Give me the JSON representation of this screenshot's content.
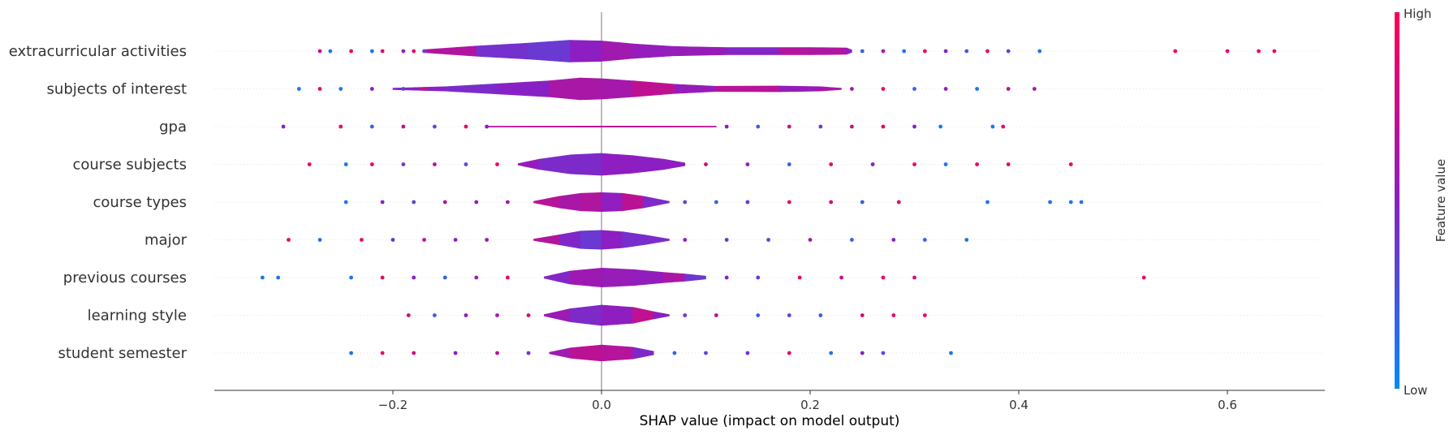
{
  "chart_data": {
    "type": "violin-beeswarm",
    "xlabel": "SHAP value (impact on model output)",
    "xlim": [
      -0.37,
      0.69
    ],
    "xticks": [
      -0.2,
      0.0,
      0.2,
      0.4,
      0.6
    ],
    "xtick_labels": [
      "−0.2",
      "0.0",
      "0.2",
      "0.4",
      "0.6"
    ],
    "grid": false,
    "zero_line": true,
    "colorbar": {
      "label": "Feature value",
      "high_label": "High",
      "low_label": "Low",
      "high_color": "#ff0052",
      "mid_color": "#8b1fc4",
      "low_color": "#008bfb"
    },
    "features": [
      {
        "name": "extracurricular activities",
        "violin": [
          [
            -0.17,
            0.1
          ],
          [
            -0.12,
            0.35
          ],
          [
            -0.07,
            0.55
          ],
          [
            -0.03,
            0.75
          ],
          [
            0.0,
            0.7
          ],
          [
            0.03,
            0.5
          ],
          [
            0.07,
            0.32
          ],
          [
            0.12,
            0.25
          ],
          [
            0.17,
            0.25
          ],
          [
            0.2,
            0.25
          ],
          [
            0.235,
            0.22
          ],
          [
            0.24,
            0.08
          ]
        ],
        "points": [
          [
            -0.27,
            0.8
          ],
          [
            -0.26,
            0.1
          ],
          [
            -0.24,
            0.9
          ],
          [
            -0.22,
            0.1
          ],
          [
            -0.21,
            0.85
          ],
          [
            -0.19,
            0.5
          ],
          [
            -0.18,
            0.9
          ],
          [
            -0.17,
            0.3
          ],
          [
            0.25,
            0.2
          ],
          [
            0.27,
            0.6
          ],
          [
            0.29,
            0.1
          ],
          [
            0.31,
            0.9
          ],
          [
            0.33,
            0.5
          ],
          [
            0.35,
            0.2
          ],
          [
            0.37,
            0.9
          ],
          [
            0.39,
            0.3
          ],
          [
            0.42,
            0.1
          ],
          [
            0.55,
            0.95
          ],
          [
            0.6,
            0.9
          ],
          [
            0.63,
            0.95
          ],
          [
            0.645,
            0.9
          ]
        ]
      },
      {
        "name": "subjects of interest",
        "violin": [
          [
            -0.2,
            0.05
          ],
          [
            -0.15,
            0.15
          ],
          [
            -0.1,
            0.35
          ],
          [
            -0.05,
            0.55
          ],
          [
            -0.02,
            0.75
          ],
          [
            0.0,
            0.7
          ],
          [
            0.03,
            0.55
          ],
          [
            0.07,
            0.32
          ],
          [
            0.11,
            0.18
          ],
          [
            0.17,
            0.2
          ],
          [
            0.21,
            0.15
          ],
          [
            0.23,
            0.05
          ]
        ],
        "points": [
          [
            -0.29,
            0.1
          ],
          [
            -0.27,
            0.9
          ],
          [
            -0.25,
            0.1
          ],
          [
            -0.22,
            0.5
          ],
          [
            -0.19,
            0.3
          ],
          [
            -0.17,
            0.9
          ],
          [
            0.24,
            0.6
          ],
          [
            0.27,
            0.9
          ],
          [
            0.3,
            0.2
          ],
          [
            0.33,
            0.5
          ],
          [
            0.36,
            0.1
          ],
          [
            0.39,
            0.7
          ],
          [
            0.415,
            0.6
          ]
        ]
      },
      {
        "name": "gpa",
        "violin": [
          [
            -0.11,
            0.03
          ],
          [
            0.0,
            0.04
          ],
          [
            0.11,
            0.03
          ]
        ],
        "points": [
          [
            -0.305,
            0.5
          ],
          [
            -0.25,
            0.9
          ],
          [
            -0.22,
            0.2
          ],
          [
            -0.19,
            0.7
          ],
          [
            -0.16,
            0.3
          ],
          [
            -0.13,
            0.9
          ],
          [
            -0.11,
            0.5
          ],
          [
            0.12,
            0.5
          ],
          [
            0.15,
            0.2
          ],
          [
            0.18,
            0.8
          ],
          [
            0.21,
            0.4
          ],
          [
            0.24,
            0.7
          ],
          [
            0.27,
            0.9
          ],
          [
            0.3,
            0.5
          ],
          [
            0.325,
            0.1
          ],
          [
            0.375,
            0.1
          ],
          [
            0.385,
            0.9
          ]
        ]
      },
      {
        "name": "course subjects",
        "violin": [
          [
            -0.08,
            0.05
          ],
          [
            -0.06,
            0.35
          ],
          [
            -0.03,
            0.65
          ],
          [
            0.0,
            0.75
          ],
          [
            0.03,
            0.6
          ],
          [
            0.06,
            0.35
          ],
          [
            0.08,
            0.1
          ]
        ],
        "points": [
          [
            -0.28,
            0.9
          ],
          [
            -0.245,
            0.1
          ],
          [
            -0.22,
            0.9
          ],
          [
            -0.19,
            0.4
          ],
          [
            -0.16,
            0.7
          ],
          [
            -0.13,
            0.3
          ],
          [
            -0.1,
            0.9
          ],
          [
            0.1,
            0.8
          ],
          [
            0.14,
            0.5
          ],
          [
            0.18,
            0.2
          ],
          [
            0.22,
            0.9
          ],
          [
            0.26,
            0.5
          ],
          [
            0.3,
            0.9
          ],
          [
            0.33,
            0.1
          ],
          [
            0.36,
            0.9
          ],
          [
            0.39,
            0.9
          ],
          [
            0.45,
            0.9
          ]
        ]
      },
      {
        "name": "course types",
        "violin": [
          [
            -0.065,
            0.05
          ],
          [
            -0.04,
            0.4
          ],
          [
            -0.02,
            0.6
          ],
          [
            0.0,
            0.65
          ],
          [
            0.02,
            0.6
          ],
          [
            0.04,
            0.4
          ],
          [
            0.065,
            0.05
          ]
        ],
        "points": [
          [
            -0.245,
            0.1
          ],
          [
            -0.21,
            0.5
          ],
          [
            -0.18,
            0.3
          ],
          [
            -0.15,
            0.7
          ],
          [
            -0.12,
            0.5
          ],
          [
            -0.09,
            0.6
          ],
          [
            0.08,
            0.3
          ],
          [
            0.11,
            0.2
          ],
          [
            0.14,
            0.4
          ],
          [
            0.18,
            0.9
          ],
          [
            0.22,
            0.8
          ],
          [
            0.25,
            0.2
          ],
          [
            0.285,
            0.9
          ],
          [
            0.37,
            0.1
          ],
          [
            0.43,
            0.1
          ],
          [
            0.45,
            0.1
          ],
          [
            0.46,
            0.1
          ]
        ]
      },
      {
        "name": "major",
        "violin": [
          [
            -0.065,
            0.05
          ],
          [
            -0.04,
            0.35
          ],
          [
            -0.02,
            0.6
          ],
          [
            0.0,
            0.65
          ],
          [
            0.02,
            0.55
          ],
          [
            0.04,
            0.35
          ],
          [
            0.065,
            0.05
          ]
        ],
        "points": [
          [
            -0.3,
            0.9
          ],
          [
            -0.27,
            0.1
          ],
          [
            -0.23,
            0.9
          ],
          [
            -0.2,
            0.4
          ],
          [
            -0.17,
            0.7
          ],
          [
            -0.14,
            0.5
          ],
          [
            -0.11,
            0.6
          ],
          [
            0.08,
            0.5
          ],
          [
            0.12,
            0.4
          ],
          [
            0.16,
            0.3
          ],
          [
            0.2,
            0.6
          ],
          [
            0.24,
            0.2
          ],
          [
            0.28,
            0.5
          ],
          [
            0.31,
            0.2
          ],
          [
            0.35,
            0.1
          ]
        ]
      },
      {
        "name": "previous courses",
        "violin": [
          [
            -0.055,
            0.05
          ],
          [
            -0.03,
            0.45
          ],
          [
            0.0,
            0.65
          ],
          [
            0.03,
            0.55
          ],
          [
            0.06,
            0.35
          ],
          [
            0.08,
            0.25
          ],
          [
            0.1,
            0.1
          ]
        ],
        "points": [
          [
            -0.325,
            0.1
          ],
          [
            -0.31,
            0.1
          ],
          [
            -0.24,
            0.1
          ],
          [
            -0.21,
            0.9
          ],
          [
            -0.18,
            0.5
          ],
          [
            -0.15,
            0.2
          ],
          [
            -0.12,
            0.6
          ],
          [
            -0.09,
            0.9
          ],
          [
            0.12,
            0.5
          ],
          [
            0.15,
            0.4
          ],
          [
            0.19,
            0.9
          ],
          [
            0.23,
            0.7
          ],
          [
            0.27,
            0.9
          ],
          [
            0.3,
            0.8
          ],
          [
            0.52,
            0.9
          ]
        ]
      },
      {
        "name": "learning style",
        "violin": [
          [
            -0.055,
            0.05
          ],
          [
            -0.03,
            0.45
          ],
          [
            0.0,
            0.7
          ],
          [
            0.03,
            0.55
          ],
          [
            0.05,
            0.25
          ],
          [
            0.065,
            0.05
          ]
        ],
        "points": [
          [
            -0.185,
            0.8
          ],
          [
            -0.16,
            0.2
          ],
          [
            -0.13,
            0.5
          ],
          [
            -0.1,
            0.6
          ],
          [
            -0.07,
            0.8
          ],
          [
            0.08,
            0.4
          ],
          [
            0.11,
            0.7
          ],
          [
            0.15,
            0.2
          ],
          [
            0.18,
            0.3
          ],
          [
            0.21,
            0.2
          ],
          [
            0.25,
            0.8
          ],
          [
            0.28,
            0.9
          ],
          [
            0.31,
            0.9
          ]
        ]
      },
      {
        "name": "student semester",
        "violin": [
          [
            -0.05,
            0.05
          ],
          [
            -0.03,
            0.35
          ],
          [
            0.0,
            0.55
          ],
          [
            0.03,
            0.4
          ],
          [
            0.05,
            0.12
          ]
        ],
        "points": [
          [
            -0.24,
            0.1
          ],
          [
            -0.21,
            0.9
          ],
          [
            -0.18,
            0.8
          ],
          [
            -0.14,
            0.5
          ],
          [
            -0.1,
            0.7
          ],
          [
            -0.07,
            0.4
          ],
          [
            0.07,
            0.2
          ],
          [
            0.1,
            0.3
          ],
          [
            0.14,
            0.4
          ],
          [
            0.18,
            0.9
          ],
          [
            0.22,
            0.1
          ],
          [
            0.25,
            0.5
          ],
          [
            0.27,
            0.3
          ],
          [
            0.335,
            0.1
          ]
        ]
      }
    ]
  }
}
